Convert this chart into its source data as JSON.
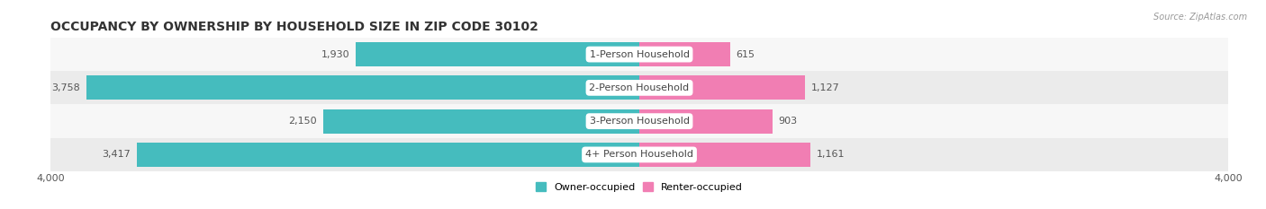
{
  "title": "OCCUPANCY BY OWNERSHIP BY HOUSEHOLD SIZE IN ZIP CODE 30102",
  "source": "Source: ZipAtlas.com",
  "categories": [
    "1-Person Household",
    "2-Person Household",
    "3-Person Household",
    "4+ Person Household"
  ],
  "owner_values": [
    1930,
    3758,
    2150,
    3417
  ],
  "renter_values": [
    615,
    1127,
    903,
    1161
  ],
  "max_scale": 4000,
  "owner_color": "#45BCBE",
  "renter_color": "#F17EB3",
  "row_bg_light": "#F7F7F7",
  "row_bg_dark": "#EBEBEB",
  "title_fontsize": 10,
  "axis_fontsize": 8,
  "legend_fontsize": 8,
  "bar_label_fontsize": 8,
  "category_fontsize": 8
}
